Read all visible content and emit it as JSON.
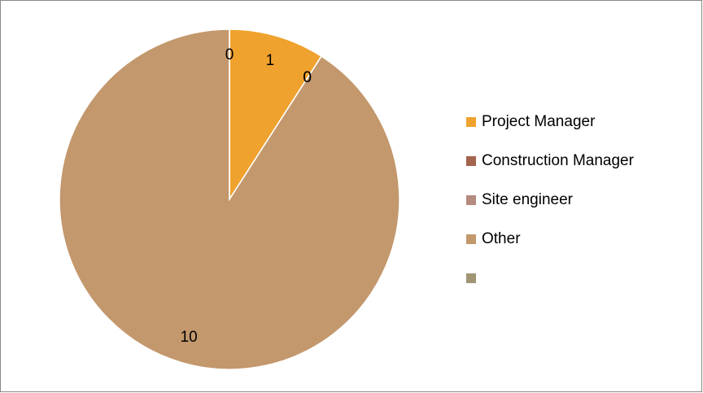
{
  "chart_data": {
    "type": "pie",
    "categories": [
      "Project Manager",
      "Construction Manager",
      "Site engineer",
      "Other",
      null
    ],
    "values": [
      1,
      0,
      0,
      10,
      0
    ],
    "colors": [
      "#f0a22e",
      "#a5644e",
      "#b58b80",
      "#c3986d",
      "#a19574"
    ],
    "legend": "right"
  }
}
